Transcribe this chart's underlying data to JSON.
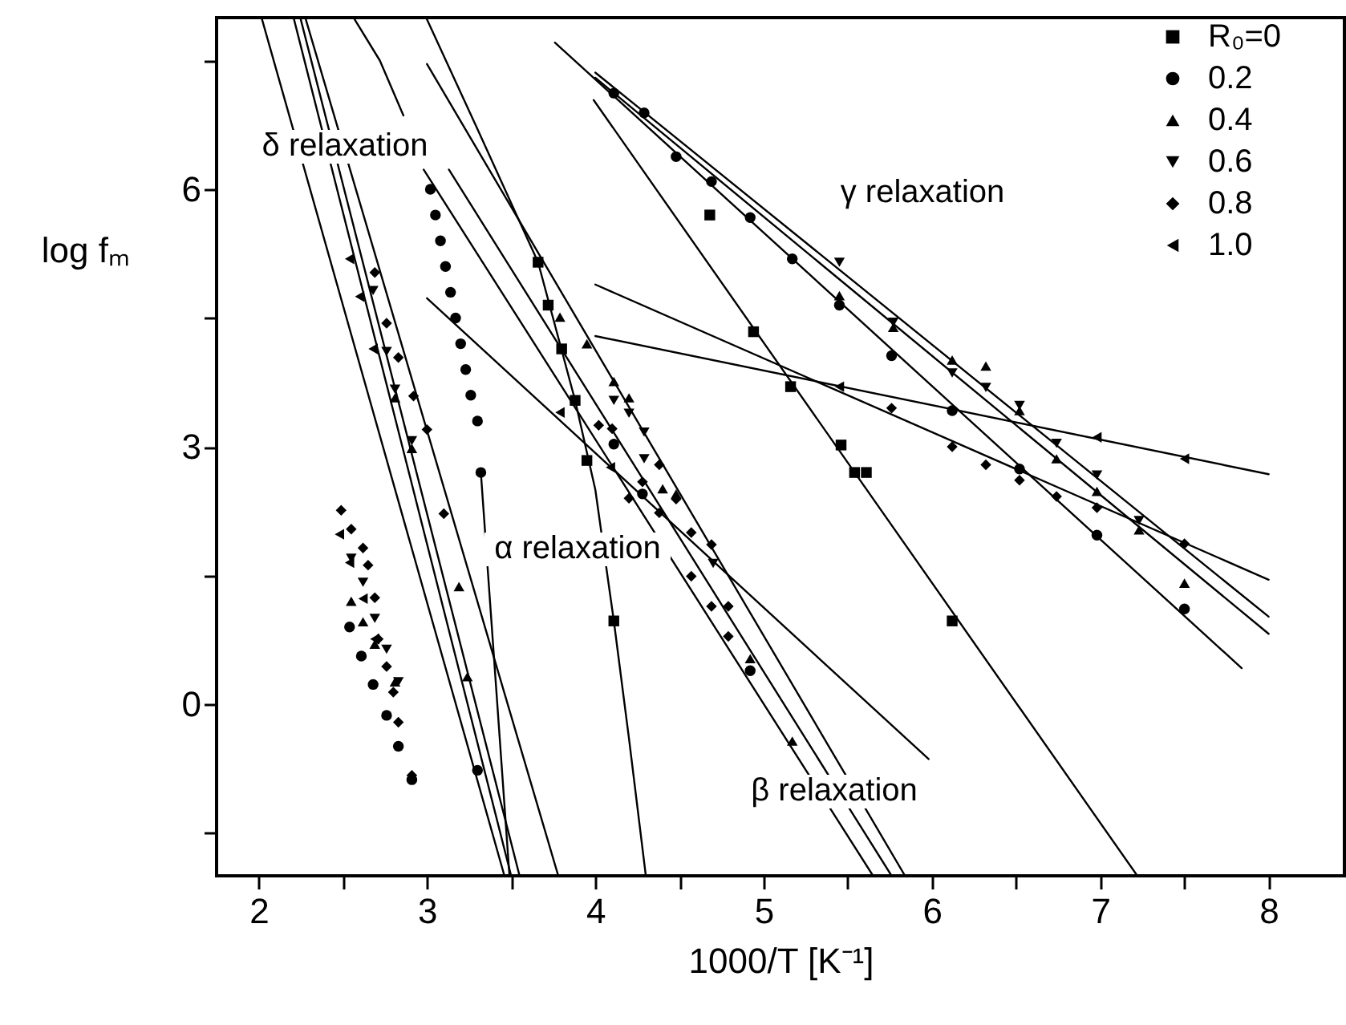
{
  "chart_data": {
    "type": "scatter",
    "xlabel": "1000/T [K⁻¹]",
    "ylabel": "log fₘ",
    "xlim": [
      1.75,
      8.45
    ],
    "ylim": [
      -2,
      8
    ],
    "xticks": [
      2,
      {
        "value": 2.5,
        "label": null
      },
      3,
      {
        "value": 3.5,
        "label": null
      },
      4,
      {
        "value": 4.5,
        "label": null
      },
      5,
      {
        "value": 5.5,
        "label": null
      },
      6,
      {
        "value": 6.5,
        "label": null
      },
      7,
      {
        "value": 7.5,
        "label": null
      },
      8
    ],
    "yticks": [
      {
        "value": -1.5,
        "label": null
      },
      0,
      {
        "value": 1.5,
        "label": null
      },
      3,
      {
        "value": 4.5,
        "label": null
      },
      6,
      {
        "value": 7.5,
        "label": null
      }
    ],
    "grid": false,
    "legend": "top right",
    "annotations": [
      "δ relaxation",
      "γ relaxation",
      "α relaxation",
      "β relaxation"
    ],
    "series": [
      {
        "name": "R₀=0",
        "marker": "square",
        "color": "#000000",
        "x": [
          3.66,
          3.72,
          3.8,
          3.88,
          3.95,
          4.11,
          4.68,
          4.94,
          5.16,
          5.46,
          5.54,
          5.61,
          6.12
        ],
        "values": [
          5.15,
          4.65,
          4.14,
          3.54,
          2.84,
          0.97,
          5.7,
          4.34,
          3.7,
          3.02,
          2.7,
          2.7,
          0.97
        ]
      },
      {
        "name": "0.2",
        "marker": "circle",
        "color": "#000000",
        "x": [
          4.11,
          4.29,
          4.48,
          4.69,
          4.92,
          5.17,
          5.45,
          5.76,
          6.12,
          6.52,
          6.98,
          7.5,
          4.11,
          4.28,
          4.92,
          2.54,
          2.61,
          2.68,
          2.76,
          2.83,
          2.91,
          3.3,
          3.02,
          3.05,
          3.08,
          3.11,
          3.14,
          3.17,
          3.2,
          3.23,
          3.26,
          3.3,
          3.32
        ],
        "values": [
          7.12,
          6.89,
          6.38,
          6.09,
          5.67,
          5.19,
          4.65,
          4.06,
          3.42,
          2.74,
          1.97,
          1.11,
          3.03,
          2.45,
          0.39,
          0.9,
          0.56,
          0.23,
          -0.13,
          -0.49,
          -0.88,
          -0.77,
          6.0,
          5.7,
          5.4,
          5.1,
          4.8,
          4.5,
          4.2,
          3.9,
          3.6,
          3.3,
          2.7
        ]
      },
      {
        "name": "0.4",
        "marker": "triangle",
        "color": "#000000",
        "x": [
          2.81,
          2.91,
          3.19,
          3.24,
          2.55,
          2.62,
          2.69,
          2.81,
          5.45,
          5.77,
          6.12,
          6.32,
          6.52,
          6.74,
          6.98,
          7.23,
          7.5,
          3.79,
          3.95,
          4.11,
          4.2,
          4.4,
          4.48,
          4.92,
          5.17
        ],
        "values": [
          3.57,
          2.98,
          1.37,
          0.32,
          1.2,
          0.96,
          0.7,
          0.26,
          4.76,
          4.39,
          4.01,
          3.94,
          3.42,
          2.86,
          2.48,
          2.03,
          1.41,
          4.51,
          4.2,
          3.76,
          3.57,
          2.51,
          2.45,
          0.53,
          -0.43
        ]
      },
      {
        "name": "0.6",
        "marker": "triangle-down",
        "color": "#000000",
        "x": [
          2.81,
          2.91,
          2.68,
          2.76,
          2.55,
          2.62,
          2.69,
          2.76,
          2.83,
          4.11,
          4.2,
          4.29,
          4.29,
          4.7,
          5.45,
          5.77,
          6.12,
          6.32,
          6.52,
          6.74,
          6.98,
          7.23
        ],
        "values": [
          3.67,
          3.07,
          4.82,
          4.11,
          1.7,
          1.42,
          1.0,
          0.64,
          0.26,
          3.54,
          3.39,
          3.17,
          2.86,
          1.64,
          5.15,
          4.45,
          3.86,
          3.69,
          3.48,
          3.04,
          2.67,
          2.14
        ]
      },
      {
        "name": "0.8",
        "marker": "diamond",
        "color": "#000000",
        "x": [
          2.69,
          2.76,
          2.83,
          2.92,
          3.0,
          3.1,
          2.49,
          2.55,
          2.62,
          2.65,
          2.69,
          2.71,
          2.76,
          2.8,
          2.83,
          2.91,
          4.02,
          4.1,
          4.38,
          4.28,
          4.2,
          4.38,
          4.48,
          4.57,
          4.69,
          4.57,
          4.69,
          4.79,
          4.79,
          5.76,
          6.12,
          6.32,
          6.52,
          6.74,
          6.98,
          7.5
        ],
        "values": [
          5.03,
          4.44,
          4.04,
          3.59,
          3.2,
          2.22,
          2.26,
          2.04,
          1.82,
          1.62,
          1.24,
          0.76,
          0.44,
          0.14,
          -0.21,
          -0.83,
          3.25,
          3.21,
          2.79,
          2.59,
          2.4,
          2.23,
          2.39,
          2.0,
          1.86,
          1.49,
          1.14,
          1.14,
          0.79,
          3.45,
          3.0,
          2.79,
          2.61,
          2.42,
          2.29,
          1.87
        ]
      },
      {
        "name": "1.0",
        "marker": "triangle-left",
        "color": "#000000",
        "x": [
          2.54,
          2.6,
          2.68,
          2.48,
          2.54,
          2.62,
          2.69,
          3.79,
          4.09,
          5.45,
          6.98,
          7.5
        ],
        "values": [
          5.19,
          4.75,
          4.14,
          1.98,
          1.65,
          1.23,
          0.76,
          3.4,
          2.76,
          3.7,
          3.11,
          2.86
        ]
      },
      {
        "type": "line",
        "color": "#000000",
        "x": [
          3.0,
          3.3,
          3.66,
          3.88,
          4.0,
          4.11,
          4.2,
          4.3
        ],
        "values": [
          7.98,
          6.7,
          5.15,
          3.54,
          2.5,
          0.97,
          -0.4,
          -2.0
        ]
      },
      {
        "type": "line",
        "color": "#000000",
        "x": [
          3.99,
          7.22
        ],
        "values": [
          7.04,
          -2.0
        ]
      },
      {
        "type": "line",
        "color": "#000000",
        "x": [
          3.76,
          7.84
        ],
        "values": [
          7.71,
          0.42
        ]
      },
      {
        "type": "line",
        "color": "#000000",
        "x": [
          4.0,
          8.0
        ],
        "values": [
          7.36,
          1.02
        ]
      },
      {
        "type": "line",
        "color": "#000000",
        "x": [
          4.0,
          8.0
        ],
        "values": [
          7.3,
          0.82
        ]
      },
      {
        "type": "line",
        "color": "#000000",
        "x": [
          4.0,
          8.0
        ],
        "values": [
          4.89,
          1.45
        ]
      },
      {
        "type": "line",
        "color": "#000000",
        "x": [
          4.0,
          8.0
        ],
        "values": [
          4.29,
          2.68
        ]
      },
      {
        "type": "line",
        "color": "#000000",
        "x": [
          3.0,
          5.98
        ],
        "values": [
          4.73,
          -0.64
        ]
      },
      {
        "type": "line",
        "color": "#000000",
        "x": [
          3.0,
          5.84
        ],
        "values": [
          7.46,
          -2.0
        ]
      },
      {
        "type": "line",
        "color": "#000000",
        "x": [
          2.98,
          5.65
        ],
        "values": [
          6.23,
          -2.0
        ]
      },
      {
        "type": "line",
        "color": "#000000",
        "x": [
          3.13,
          5.76
        ],
        "values": [
          6.23,
          -2.0
        ]
      },
      {
        "type": "line",
        "color": "#000000",
        "x": [
          2.02,
          3.46
        ],
        "values": [
          7.98,
          -2.0
        ]
      },
      {
        "type": "line",
        "color": "#000000",
        "x": [
          2.21,
          3.5
        ],
        "values": [
          7.98,
          -2.0
        ]
      },
      {
        "type": "line",
        "color": "#000000",
        "x": [
          2.25,
          3.55
        ],
        "values": [
          7.98,
          -2.0
        ]
      },
      {
        "type": "line",
        "color": "#000000",
        "x": [
          2.28,
          3.78
        ],
        "values": [
          7.98,
          -2.0
        ]
      },
      {
        "type": "line",
        "color": "#000000",
        "x": [
          3.32,
          3.49
        ],
        "values": [
          2.7,
          -2.0
        ]
      },
      {
        "type": "line",
        "color": "#000000",
        "x": [
          2.57,
          2.72,
          2.86
        ],
        "values": [
          7.98,
          7.5,
          6.86
        ]
      }
    ]
  }
}
